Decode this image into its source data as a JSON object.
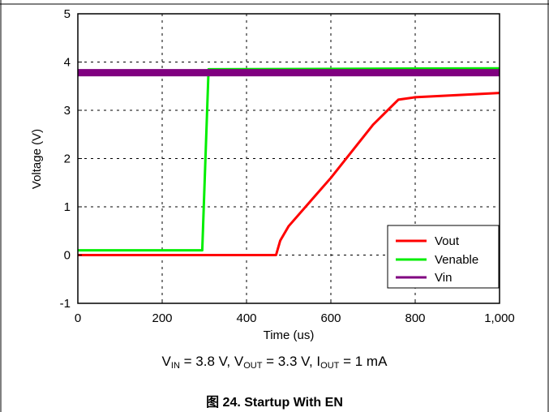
{
  "chart_data": {
    "type": "line",
    "xlabel": "Time (us)",
    "ylabel": "Voltage (V)",
    "xlim": [
      0,
      1000
    ],
    "ylim": [
      -1,
      5
    ],
    "x_ticks": [
      "0",
      "200",
      "400",
      "600",
      "800",
      "1,000"
    ],
    "y_ticks": [
      "-1",
      "0",
      "1",
      "2",
      "3",
      "4",
      "5"
    ],
    "grid": true,
    "legend_position": "bottom-right",
    "series": [
      {
        "name": "Vout",
        "color": "#ff0000",
        "x": [
          0,
          470,
          480,
          500,
          600,
          700,
          760,
          800,
          1000
        ],
        "y": [
          0.0,
          0.0,
          0.3,
          0.6,
          1.6,
          2.7,
          3.22,
          3.27,
          3.36
        ]
      },
      {
        "name": "Venable",
        "color": "#00ee00",
        "x": [
          0,
          295,
          310,
          1000
        ],
        "y": [
          0.1,
          0.1,
          3.85,
          3.87
        ]
      },
      {
        "name": "Vin",
        "color": "#800080",
        "x": [
          0,
          1000
        ],
        "y": [
          3.78,
          3.78
        ]
      }
    ]
  },
  "conditions": {
    "vin_sym": "V",
    "vin_sub": "IN",
    "vin_val": " = 3.8 V, ",
    "vout_sym": "V",
    "vout_sub": "OUT",
    "vout_val": " = 3.3 V, ",
    "iout_sym": "I",
    "iout_sub": "OUT",
    "iout_val": " = 1 mA"
  },
  "figure_caption": "图 24. Startup With EN"
}
